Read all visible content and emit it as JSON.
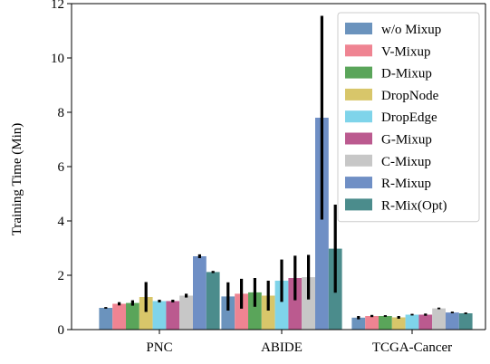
{
  "chart_data": {
    "type": "bar",
    "title": "",
    "xlabel": "",
    "ylabel": "Training Time (Min)",
    "ylim": [
      0,
      12
    ],
    "yticks": [
      0,
      2,
      4,
      6,
      8,
      10,
      12
    ],
    "categories": [
      "PNC",
      "ABIDE",
      "TCGA-Cancer"
    ],
    "legend_position": "top-right",
    "grid": false,
    "series": [
      {
        "name": "w/o Mixup",
        "color": "#6b93bd",
        "values": [
          0.8,
          1.22,
          0.44
        ],
        "errors": [
          0.03,
          0.52,
          0.06
        ]
      },
      {
        "name": "V-Mixup",
        "color": "#ef8492",
        "values": [
          0.95,
          1.32,
          0.5
        ],
        "errors": [
          0.06,
          0.55,
          0.04
        ]
      },
      {
        "name": "D-Mixup",
        "color": "#5aa55a",
        "values": [
          0.98,
          1.37,
          0.5
        ],
        "errors": [
          0.1,
          0.53,
          0.03
        ]
      },
      {
        "name": "DropNode",
        "color": "#d8c66a",
        "values": [
          1.2,
          1.25,
          0.45
        ],
        "errors": [
          0.55,
          0.55,
          0.05
        ]
      },
      {
        "name": "DropEdge",
        "color": "#7fd4ea",
        "values": [
          1.05,
          1.8,
          0.55
        ],
        "errors": [
          0.05,
          0.78,
          0.03
        ]
      },
      {
        "name": "G-Mixup",
        "color": "#bb5a8f",
        "values": [
          1.05,
          1.9,
          0.55
        ],
        "errors": [
          0.05,
          0.82,
          0.04
        ]
      },
      {
        "name": "C-Mixup",
        "color": "#c7c7c7",
        "values": [
          1.25,
          1.93,
          0.78
        ],
        "errors": [
          0.07,
          0.82,
          0.03
        ]
      },
      {
        "name": "R-Mixup",
        "color": "#6f8fc5",
        "values": [
          2.7,
          7.8,
          0.63
        ],
        "errors": [
          0.07,
          3.75,
          0.03
        ]
      },
      {
        "name": "R-Mix(Opt)",
        "color": "#4b8c8c",
        "values": [
          2.12,
          2.98,
          0.6
        ],
        "errors": [
          0.04,
          1.62,
          0.03
        ]
      }
    ]
  }
}
